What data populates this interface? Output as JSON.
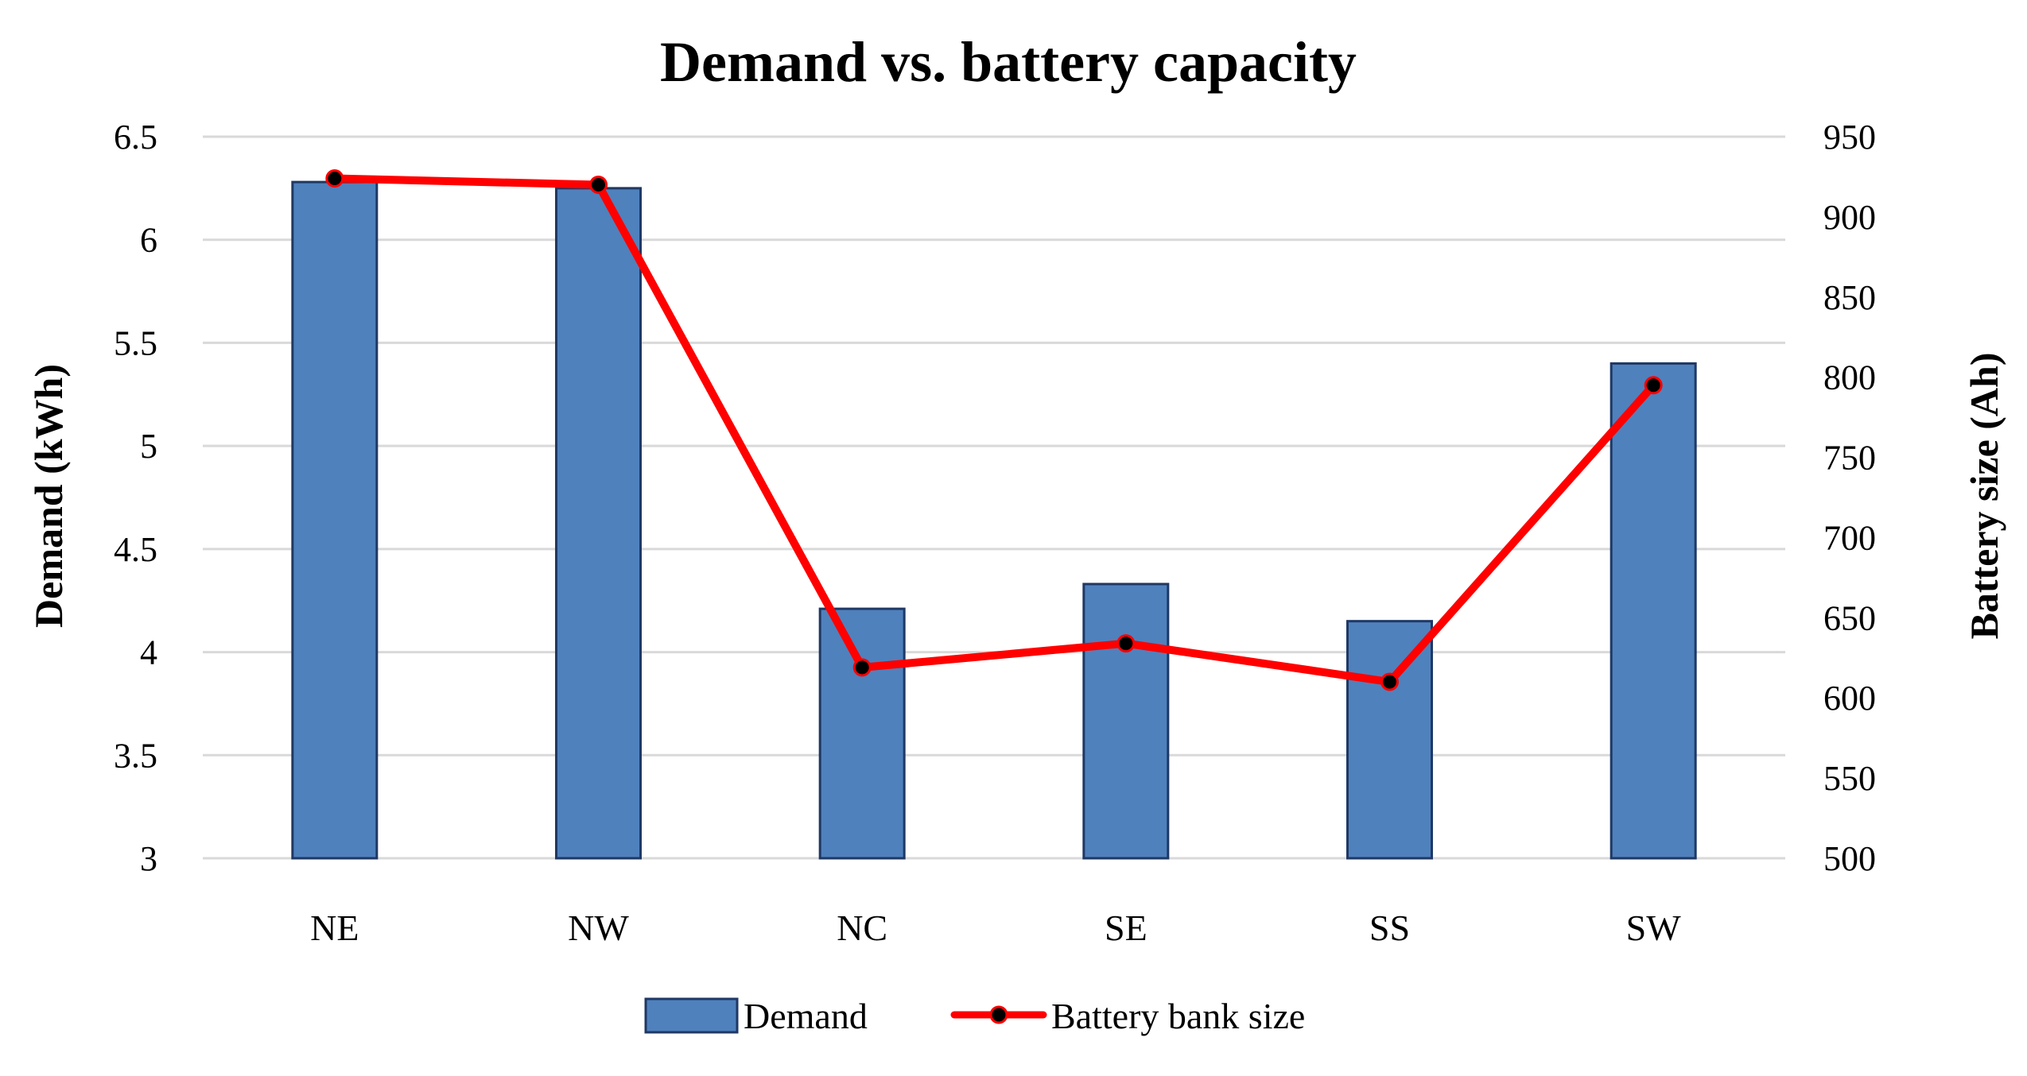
{
  "chart_data": {
    "type": "bar+line",
    "title": "Demand vs. battery capacity",
    "categories": [
      "NE",
      "NW",
      "NC",
      "SE",
      "SS",
      "SW"
    ],
    "series": [
      {
        "name": "Demand",
        "type": "bar",
        "axis": "left",
        "values": [
          6.28,
          6.25,
          4.21,
          4.33,
          4.15,
          5.4
        ],
        "color": "#4f81bd",
        "edge_color": "#1f3864"
      },
      {
        "name": "Battery bank size",
        "type": "line",
        "axis": "right",
        "values": [
          924,
          920,
          619,
          634,
          610,
          795
        ],
        "color": "#ff0000",
        "marker_color": "#000000"
      }
    ],
    "y_left": {
      "label": "Demand (kWh)",
      "lim": [
        3,
        6.5
      ],
      "ticks": [
        "3",
        "3.5",
        "4",
        "4.5",
        "5",
        "5.5",
        "6",
        "6.5"
      ]
    },
    "y_right": {
      "label": "Battery size (Ah)",
      "lim": [
        500,
        950
      ],
      "ticks": [
        "500",
        "550",
        "600",
        "650",
        "700",
        "750",
        "800",
        "850",
        "900",
        "950"
      ]
    },
    "grid": true,
    "grid_color": "#d9d9d9",
    "legend": "bottom-center"
  }
}
